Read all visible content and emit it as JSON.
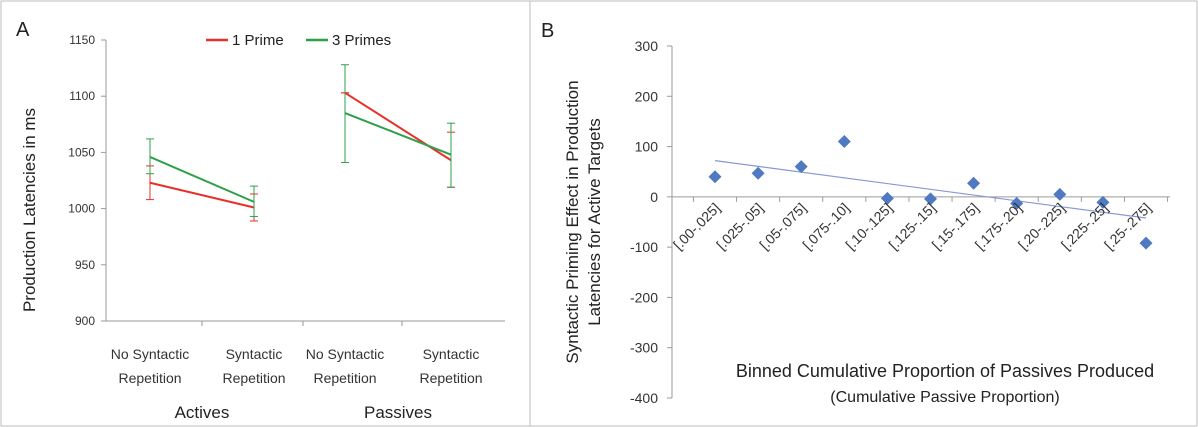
{
  "panel_a": {
    "label": "A",
    "chart_data": {
      "type": "line",
      "ylabel": "Production Latencies in ms",
      "ylim": [
        900,
        1150
      ],
      "yticks": [
        900,
        950,
        1000,
        1050,
        1100,
        1150
      ],
      "groups": [
        {
          "label": "Actives",
          "categories": [
            [
              "No Syntactic",
              "Repetition"
            ],
            [
              "Syntactic",
              "Repetition"
            ]
          ]
        },
        {
          "label": "Passives",
          "categories": [
            [
              "No Syntactic",
              "Repetition"
            ],
            [
              "Syntactic",
              "Repetition"
            ]
          ]
        }
      ],
      "legend_position": "top",
      "series": [
        {
          "name": "1 Prime",
          "color": "#e8302a",
          "segments": [
            {
              "values": [
                1023,
                1001
              ],
              "err_low": [
                1008,
                989
              ],
              "err_high": [
                1038,
                1013
              ]
            },
            {
              "values": [
                1103,
                1043
              ],
              "err_low": [
                1103,
                1019
              ],
              "err_high": [
                1103,
                1068
              ]
            }
          ]
        },
        {
          "name": "3 Primes",
          "color": "#2ea04a",
          "segments": [
            {
              "values": [
                1046,
                1006
              ],
              "err_low": [
                1031,
                993
              ],
              "err_high": [
                1062,
                1020
              ]
            },
            {
              "values": [
                1085,
                1048
              ],
              "err_low": [
                1041,
                1019
              ],
              "err_high": [
                1128,
                1076
              ]
            }
          ]
        }
      ]
    }
  },
  "panel_b": {
    "label": "B",
    "chart_data": {
      "type": "scatter",
      "ylabel": [
        "Syntactic Priming Effect in Production",
        "Latencies for Active Targets"
      ],
      "xlabel": [
        "Binned Cumulative Proportion of Passives Produced",
        "(Cumulative Passive Proportion)"
      ],
      "ylim": [
        -400,
        300
      ],
      "yticks": [
        -400,
        -300,
        -200,
        -100,
        0,
        100,
        200,
        300
      ],
      "categories": [
        "[.00-.025]",
        "[.025-.05]",
        "[.05-.075]",
        "[.075-.10]",
        "[.10-.125]",
        "[.125-.15]",
        "[.15-.175]",
        "[.175-.20]",
        "[.20-.225]",
        "[.225-.25]",
        "[.25-.275]"
      ],
      "values": [
        40,
        47,
        60,
        110,
        -3,
        -4,
        27,
        -13,
        5,
        -11,
        -92
      ],
      "marker_color": "#4f79c0",
      "trendline": {
        "color": "#8898d8",
        "start": 72,
        "end": -42
      }
    }
  }
}
